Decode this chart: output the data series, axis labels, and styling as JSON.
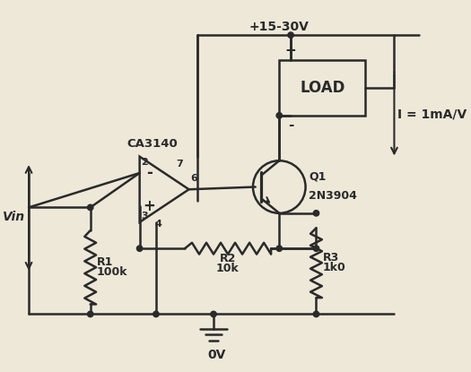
{
  "bg_color": "#ede8d8",
  "line_color": "#2a2a2a",
  "title": "+15-30V",
  "vin_label": "Vin",
  "r1_label1": "R1",
  "r1_label2": "100k",
  "r2_label1": "R2",
  "r2_label2": "10k",
  "r3_label1": "R3",
  "r3_label2": "1k0",
  "load_label": "LOAD",
  "opamp_label": "CA3140",
  "transistor_label1": "Q1",
  "transistor_label2": "2N3904",
  "current_label": "I = 1mA/V",
  "gnd_label": "0V",
  "pin2": "2",
  "pin3": "3",
  "pin4": "4",
  "pin6": "6",
  "pin7": "7",
  "plus_sign": "+",
  "minus_sign": "-"
}
